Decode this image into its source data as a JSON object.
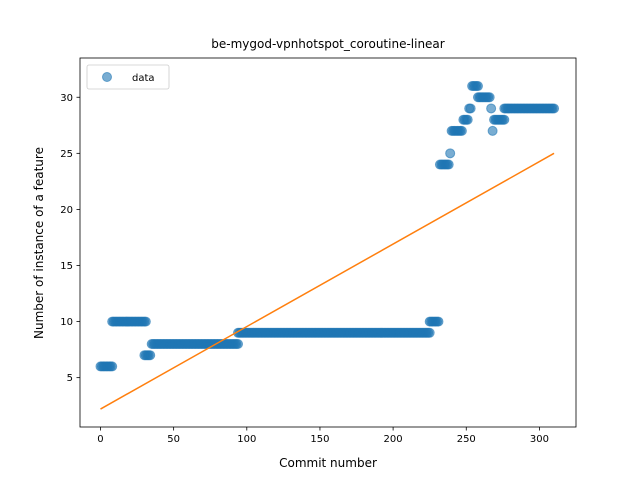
{
  "chart_data": {
    "type": "scatter",
    "title": "be-mygod-vpnhotspot_coroutine-linear",
    "xlabel": "Commit number",
    "ylabel": "Number of instance of a feature",
    "xlim": [
      -14,
      325
    ],
    "ylim": [
      0.6,
      33.5
    ],
    "xticks": [
      0,
      50,
      100,
      150,
      200,
      250,
      300
    ],
    "yticks": [
      5,
      10,
      15,
      20,
      25,
      30
    ],
    "grid": false,
    "legend": {
      "position": "top-left",
      "entries": [
        "data"
      ]
    },
    "colors": {
      "data": "#1f77b4",
      "fit": "#ff7f0e"
    },
    "series": [
      {
        "name": "data",
        "kind": "scatter",
        "segments": [
          {
            "x_start": 0,
            "x_end": 8,
            "y": 6
          },
          {
            "x_start": 8,
            "x_end": 31,
            "y": 10
          },
          {
            "x_start": 30,
            "x_end": 34,
            "y": 7
          },
          {
            "x_start": 35,
            "x_end": 94,
            "y": 8
          },
          {
            "x_start": 94,
            "x_end": 225,
            "y": 9
          },
          {
            "x_start": 225,
            "x_end": 231,
            "y": 10
          },
          {
            "x_start": 232,
            "x_end": 238,
            "y": 24
          },
          {
            "x_start": 239,
            "x_end": 239,
            "y": 25
          },
          {
            "x_start": 240,
            "x_end": 247,
            "y": 27
          },
          {
            "x_start": 248,
            "x_end": 251,
            "y": 28
          },
          {
            "x_start": 252,
            "x_end": 253,
            "y": 29
          },
          {
            "x_start": 254,
            "x_end": 258,
            "y": 31
          },
          {
            "x_start": 258,
            "x_end": 266,
            "y": 30
          },
          {
            "x_start": 267,
            "x_end": 267,
            "y": 29
          },
          {
            "x_start": 268,
            "x_end": 268,
            "y": 27
          },
          {
            "x_start": 269,
            "x_end": 276,
            "y": 28
          },
          {
            "x_start": 276,
            "x_end": 310,
            "y": 29
          }
        ]
      },
      {
        "name": "fit",
        "kind": "line",
        "x": [
          0,
          310
        ],
        "y": [
          2.2,
          25.0
        ]
      }
    ]
  }
}
